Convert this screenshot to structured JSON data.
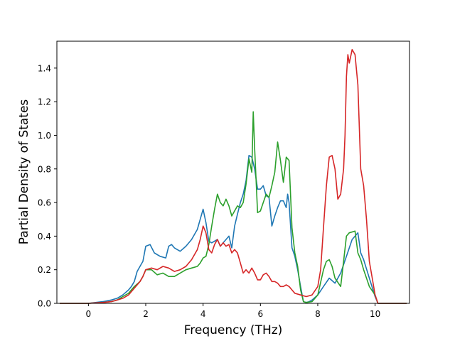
{
  "chart_data": {
    "type": "line",
    "xlabel": "Frequency (THz)",
    "ylabel": "Partial Density of States",
    "xlim": [
      -1.1,
      11.2
    ],
    "ylim": [
      0,
      1.56
    ],
    "xticks": [
      0,
      2,
      4,
      6,
      8,
      10
    ],
    "yticks": [
      0.0,
      0.2,
      0.4,
      0.6,
      0.8,
      1.0,
      1.2,
      1.4
    ],
    "xtick_labels": [
      "0",
      "2",
      "4",
      "6",
      "8",
      "10"
    ],
    "ytick_labels": [
      "0.0",
      "0.2",
      "0.4",
      "0.6",
      "0.8",
      "1.0",
      "1.2",
      "1.4"
    ],
    "grid": false,
    "series": [
      {
        "color": "#1f77b4",
        "x": [
          -1.0,
          0.0,
          0.5,
          0.8,
          1.0,
          1.2,
          1.4,
          1.5,
          1.6,
          1.7,
          1.8,
          1.9,
          2.0,
          2.15,
          2.3,
          2.5,
          2.7,
          2.8,
          2.9,
          3.0,
          3.2,
          3.4,
          3.6,
          3.8,
          3.9,
          4.0,
          4.1,
          4.2,
          4.3,
          4.4,
          4.5,
          4.6,
          4.7,
          4.8,
          4.9,
          5.0,
          5.1,
          5.2,
          5.3,
          5.4,
          5.5,
          5.6,
          5.7,
          5.8,
          5.9,
          6.0,
          6.1,
          6.2,
          6.3,
          6.4,
          6.5,
          6.6,
          6.7,
          6.8,
          6.9,
          6.95,
          7.0,
          7.1,
          7.2,
          7.3,
          7.4,
          7.5,
          7.6,
          7.7,
          7.8,
          8.0,
          8.2,
          8.4,
          8.6,
          8.8,
          9.0,
          9.2,
          9.3,
          9.4,
          9.5,
          9.6,
          9.8,
          10.0,
          10.1,
          10.3,
          11.1
        ],
        "y": [
          0.0,
          0.0,
          0.01,
          0.02,
          0.03,
          0.05,
          0.08,
          0.1,
          0.13,
          0.19,
          0.22,
          0.25,
          0.34,
          0.35,
          0.3,
          0.28,
          0.27,
          0.34,
          0.35,
          0.33,
          0.31,
          0.34,
          0.38,
          0.44,
          0.5,
          0.56,
          0.48,
          0.37,
          0.36,
          0.37,
          0.38,
          0.34,
          0.36,
          0.38,
          0.4,
          0.33,
          0.46,
          0.53,
          0.6,
          0.65,
          0.73,
          0.88,
          0.87,
          0.8,
          0.68,
          0.68,
          0.7,
          0.64,
          0.63,
          0.46,
          0.52,
          0.57,
          0.61,
          0.61,
          0.57,
          0.65,
          0.6,
          0.33,
          0.28,
          0.2,
          0.1,
          0.01,
          0.005,
          0.01,
          0.02,
          0.05,
          0.1,
          0.15,
          0.12,
          0.18,
          0.28,
          0.38,
          0.4,
          0.42,
          0.3,
          0.26,
          0.15,
          0.04,
          0.0,
          0.0,
          0.0
        ]
      },
      {
        "color": "#2ca02c",
        "x": [
          -1.0,
          0.0,
          0.5,
          0.8,
          1.0,
          1.2,
          1.4,
          1.6,
          1.8,
          1.9,
          2.0,
          2.2,
          2.4,
          2.6,
          2.8,
          3.0,
          3.2,
          3.4,
          3.6,
          3.8,
          3.9,
          4.0,
          4.1,
          4.2,
          4.3,
          4.4,
          4.5,
          4.6,
          4.7,
          4.8,
          4.9,
          5.0,
          5.1,
          5.2,
          5.3,
          5.4,
          5.5,
          5.6,
          5.7,
          5.75,
          5.8,
          5.9,
          6.0,
          6.1,
          6.2,
          6.3,
          6.4,
          6.5,
          6.6,
          6.7,
          6.8,
          6.9,
          7.0,
          7.1,
          7.2,
          7.3,
          7.4,
          7.5,
          7.6,
          7.8,
          8.0,
          8.2,
          8.3,
          8.4,
          8.5,
          8.6,
          8.8,
          8.9,
          9.0,
          9.1,
          9.3,
          9.4,
          9.5,
          9.6,
          9.8,
          10.0,
          10.1,
          10.3,
          11.1
        ],
        "y": [
          0.0,
          0.0,
          0.005,
          0.01,
          0.02,
          0.04,
          0.06,
          0.1,
          0.13,
          0.16,
          0.2,
          0.2,
          0.17,
          0.18,
          0.16,
          0.16,
          0.18,
          0.2,
          0.21,
          0.22,
          0.24,
          0.27,
          0.28,
          0.35,
          0.46,
          0.56,
          0.65,
          0.6,
          0.58,
          0.62,
          0.58,
          0.52,
          0.55,
          0.58,
          0.57,
          0.6,
          0.71,
          0.86,
          0.78,
          1.14,
          0.92,
          0.54,
          0.55,
          0.6,
          0.65,
          0.63,
          0.7,
          0.78,
          0.96,
          0.85,
          0.72,
          0.87,
          0.85,
          0.45,
          0.3,
          0.22,
          0.08,
          0.01,
          0.005,
          0.01,
          0.05,
          0.2,
          0.25,
          0.26,
          0.22,
          0.15,
          0.1,
          0.25,
          0.4,
          0.42,
          0.43,
          0.3,
          0.26,
          0.2,
          0.1,
          0.05,
          0.0,
          0.0,
          0.0
        ]
      },
      {
        "color": "#d62728",
        "x": [
          -1.0,
          0.0,
          0.5,
          0.8,
          1.0,
          1.2,
          1.4,
          1.6,
          1.8,
          1.9,
          2.0,
          2.2,
          2.4,
          2.6,
          2.8,
          3.0,
          3.2,
          3.4,
          3.6,
          3.8,
          3.9,
          4.0,
          4.1,
          4.2,
          4.3,
          4.4,
          4.5,
          4.6,
          4.7,
          4.8,
          4.9,
          5.0,
          5.1,
          5.2,
          5.3,
          5.4,
          5.5,
          5.6,
          5.7,
          5.8,
          5.9,
          6.0,
          6.1,
          6.2,
          6.3,
          6.4,
          6.5,
          6.6,
          6.7,
          6.8,
          6.9,
          7.0,
          7.1,
          7.2,
          7.4,
          7.6,
          7.8,
          8.0,
          8.1,
          8.2,
          8.3,
          8.4,
          8.5,
          8.6,
          8.7,
          8.8,
          8.9,
          8.95,
          9.0,
          9.05,
          9.1,
          9.2,
          9.3,
          9.4,
          9.5,
          9.6,
          9.7,
          9.8,
          9.9,
          10.0,
          10.1,
          10.3,
          11.1
        ],
        "y": [
          0.0,
          0.0,
          0.005,
          0.01,
          0.02,
          0.03,
          0.05,
          0.09,
          0.13,
          0.16,
          0.2,
          0.21,
          0.2,
          0.22,
          0.21,
          0.19,
          0.2,
          0.22,
          0.26,
          0.32,
          0.38,
          0.46,
          0.42,
          0.32,
          0.3,
          0.35,
          0.38,
          0.34,
          0.36,
          0.34,
          0.35,
          0.3,
          0.32,
          0.3,
          0.24,
          0.18,
          0.2,
          0.18,
          0.21,
          0.18,
          0.14,
          0.14,
          0.17,
          0.18,
          0.16,
          0.13,
          0.13,
          0.12,
          0.1,
          0.1,
          0.11,
          0.1,
          0.08,
          0.06,
          0.05,
          0.04,
          0.05,
          0.1,
          0.2,
          0.45,
          0.7,
          0.87,
          0.88,
          0.8,
          0.62,
          0.65,
          0.8,
          1.0,
          1.35,
          1.48,
          1.43,
          1.51,
          1.48,
          1.3,
          0.8,
          0.7,
          0.5,
          0.25,
          0.15,
          0.05,
          0.0,
          0.0,
          0.0
        ]
      }
    ]
  }
}
